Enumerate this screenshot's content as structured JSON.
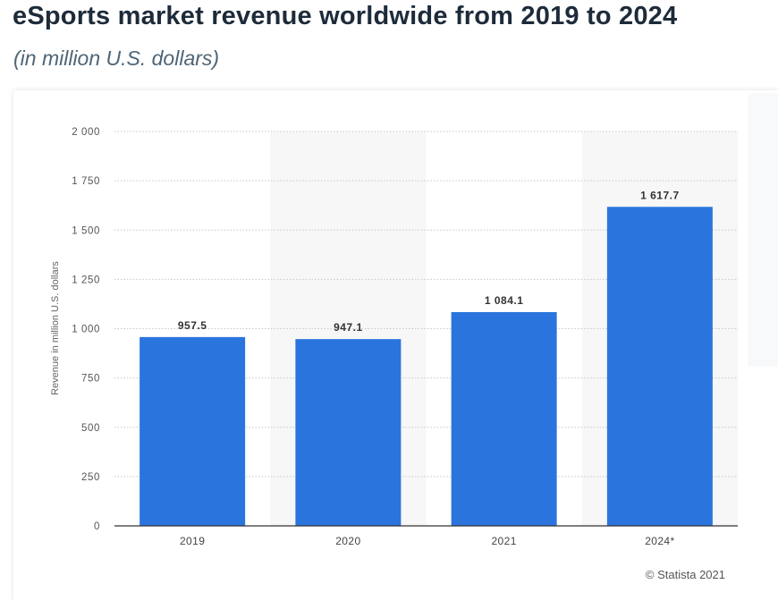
{
  "header": {
    "title": "eSports market revenue worldwide from 2019 to 2024",
    "subtitle": "(in million U.S. dollars)"
  },
  "footer": {
    "source": "© Statista 2021"
  },
  "colors": {
    "bar": "#2a75dd",
    "band": "#f7f7f7",
    "grid": "#c8c8c8"
  },
  "chart_data": {
    "type": "bar",
    "title": "eSports market revenue worldwide from 2019 to 2024",
    "subtitle": "(in million U.S. dollars)",
    "categories": [
      "2019",
      "2020",
      "2021",
      "2024*"
    ],
    "values": [
      957.5,
      947.1,
      1084.1,
      1617.7
    ],
    "value_labels": [
      "957.5",
      "947.1",
      "1 084.1",
      "1 617.7"
    ],
    "ylabel": "Revenue in million U.S. dollars",
    "xlabel": "",
    "ylim": [
      0,
      2000
    ],
    "yticks": [
      0,
      250,
      500,
      750,
      1000,
      1250,
      1500,
      1750,
      2000
    ],
    "ytick_labels": [
      "0",
      "250",
      "500",
      "750",
      "1 000",
      "1 250",
      "1 500",
      "1 750",
      "2 000"
    ],
    "grid": true,
    "legend": "none"
  }
}
